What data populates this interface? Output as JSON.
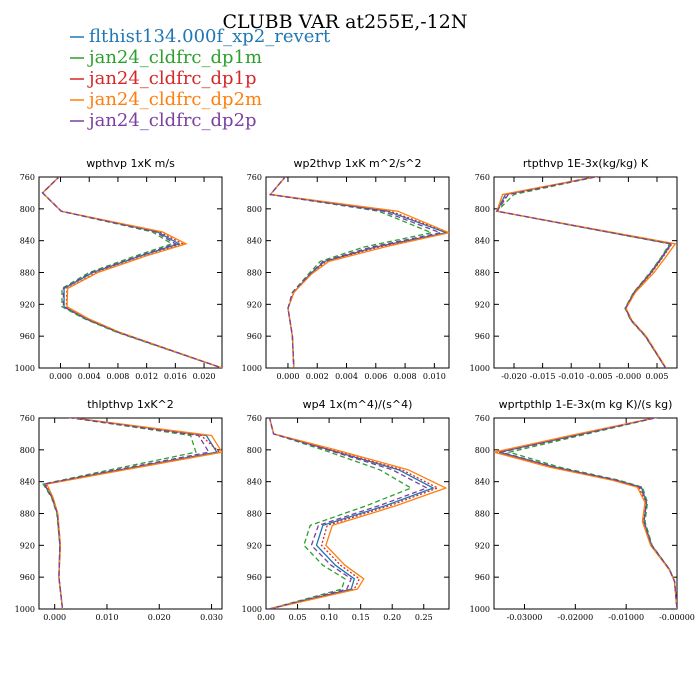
{
  "figure": {
    "title": "CLUBB VAR at255E,-12N"
  },
  "legend": [
    {
      "label": "flthist134.000f_xp2_revert",
      "color": "#1f77b4",
      "dash": "solid"
    },
    {
      "label": "jan24_cldfrc_dp1m",
      "color": "#2ca02c",
      "dash": "dashed"
    },
    {
      "label": "jan24_cldfrc_dp1p",
      "color": "#d62728",
      "dash": "dotted"
    },
    {
      "label": "jan24_cldfrc_dp2m",
      "color": "#ff7f0e",
      "dash": "solid"
    },
    {
      "label": "jan24_cldfrc_dp2p",
      "color": "#7b3fa0",
      "dash": "dashed"
    }
  ],
  "chart_data": [
    {
      "type": "line",
      "title": "wpthvp  1xK m/s",
      "xlim": [
        -0.003,
        0.0225
      ],
      "ylim": [
        760,
        1000
      ],
      "y_inverted": true,
      "xticks": [
        0.0,
        0.004,
        0.008,
        0.012,
        0.016,
        0.02
      ],
      "xtick_labels": [
        "0.000",
        "0.004",
        "0.008",
        "0.012",
        "0.016",
        "0.020"
      ],
      "yticks": [
        760,
        800,
        840,
        880,
        920,
        960,
        1000
      ],
      "y": [
        758,
        780,
        803,
        829,
        844,
        859,
        880,
        900,
        923,
        938,
        955,
        1000
      ],
      "series": [
        {
          "values": [
            0.0,
            -0.0025,
            0.0001,
            0.0135,
            0.0165,
            0.0112,
            0.0045,
            0.0005,
            0.0005,
            0.0035,
            0.008,
            0.0225
          ]
        },
        {
          "values": [
            0.0,
            -0.0025,
            0.0001,
            0.0128,
            0.0155,
            0.0105,
            0.004,
            0.0002,
            0.0002,
            0.0033,
            0.0078,
            0.0225
          ]
        },
        {
          "values": [
            0.0,
            -0.0025,
            0.0001,
            0.0138,
            0.017,
            0.0118,
            0.005,
            0.0009,
            0.0008,
            0.0038,
            0.0082,
            0.0225
          ]
        },
        {
          "values": [
            0.0,
            -0.0025,
            0.0001,
            0.0142,
            0.0175,
            0.012,
            0.0052,
            0.001,
            0.0009,
            0.0039,
            0.0082,
            0.0225
          ]
        },
        {
          "values": [
            0.0,
            -0.0025,
            0.0001,
            0.0132,
            0.016,
            0.011,
            0.0043,
            0.0004,
            0.0004,
            0.0035,
            0.008,
            0.0225
          ]
        }
      ]
    },
    {
      "type": "line",
      "title": "wp2thvp  1xK m^2/s^2",
      "xlim": [
        -0.0015,
        0.011
      ],
      "ylim": [
        760,
        1000
      ],
      "y_inverted": true,
      "xticks": [
        0.0,
        0.002,
        0.004,
        0.006,
        0.008,
        0.01
      ],
      "xtick_labels": [
        "0.000",
        "0.002",
        "0.004",
        "0.006",
        "0.008",
        "0.010"
      ],
      "yticks": [
        760,
        800,
        840,
        880,
        920,
        960,
        1000
      ],
      "y": [
        758,
        782,
        803,
        830,
        848,
        866,
        882,
        905,
        925,
        960,
        1000
      ],
      "series": [
        {
          "values": [
            -0.0001,
            -0.0012,
            0.0068,
            0.0108,
            0.006,
            0.0025,
            0.0015,
            0.0004,
            0.0,
            0.0003,
            0.0004
          ]
        },
        {
          "values": [
            -0.0001,
            -0.0012,
            0.0062,
            0.0098,
            0.0052,
            0.0022,
            0.0014,
            0.0003,
            0.0,
            0.0003,
            0.0004
          ]
        },
        {
          "values": [
            -0.0001,
            -0.0012,
            0.007,
            0.011,
            0.0062,
            0.0026,
            0.0016,
            0.0004,
            0.0,
            0.0003,
            0.0004
          ]
        },
        {
          "values": [
            -0.0001,
            -0.0012,
            0.0075,
            0.011,
            0.0066,
            0.0028,
            0.0016,
            0.0004,
            0.0,
            0.0003,
            0.0004
          ]
        },
        {
          "values": [
            -0.0001,
            -0.0012,
            0.0065,
            0.0104,
            0.0057,
            0.0024,
            0.0015,
            0.0003,
            0.0,
            0.0003,
            0.0004
          ]
        }
      ]
    },
    {
      "type": "line",
      "title": "rtpthvp  1E-3x(kg/kg) K",
      "xlim": [
        -0.0235,
        0.0085
      ],
      "ylim": [
        760,
        1000
      ],
      "y_inverted": true,
      "xticks": [
        -0.02,
        -0.015,
        -0.01,
        -0.005,
        0.0,
        0.005
      ],
      "xtick_labels": [
        "-0.020",
        "-0.015",
        "-0.010",
        "-0.005",
        "-0.000",
        "0.005"
      ],
      "yticks": [
        760,
        800,
        840,
        880,
        920,
        960,
        1000
      ],
      "y": [
        758,
        782,
        803,
        844,
        860,
        880,
        905,
        925,
        940,
        960,
        1000
      ],
      "series": [
        {
          "values": [
            -0.0045,
            -0.0215,
            -0.023,
            0.0075,
            0.006,
            0.004,
            0.001,
            -0.0005,
            0.0005,
            0.003,
            0.0065
          ]
        },
        {
          "values": [
            -0.0045,
            -0.02,
            -0.023,
            0.0072,
            0.0058,
            0.0038,
            0.0009,
            -0.0006,
            0.0004,
            0.0029,
            0.0065
          ]
        },
        {
          "values": [
            -0.0045,
            -0.0212,
            -0.023,
            0.0076,
            0.0061,
            0.0041,
            0.0011,
            -0.0005,
            0.0005,
            0.003,
            0.0065
          ]
        },
        {
          "values": [
            -0.0045,
            -0.022,
            -0.023,
            0.0082,
            0.0066,
            0.0045,
            0.0012,
            -0.0004,
            0.0006,
            0.0031,
            0.0066
          ]
        },
        {
          "values": [
            -0.0045,
            -0.021,
            -0.023,
            0.0074,
            0.0059,
            0.0039,
            0.001,
            -0.0005,
            0.0005,
            0.003,
            0.0065
          ]
        }
      ]
    },
    {
      "type": "line",
      "title": "thlpthvp  1xK^2",
      "xlim": [
        -0.003,
        0.032
      ],
      "ylim": [
        760,
        1000
      ],
      "y_inverted": true,
      "xticks": [
        0.0,
        0.01,
        0.02,
        0.03
      ],
      "xtick_labels": [
        "0.000",
        "0.010",
        "0.020",
        "0.030"
      ],
      "yticks": [
        760,
        800,
        840,
        880,
        920,
        960,
        1000
      ],
      "y": [
        758,
        782,
        803,
        828,
        843,
        860,
        880,
        920,
        960,
        1000
      ],
      "series": [
        {
          "values": [
            0.0012,
            0.029,
            0.031,
            0.01,
            -0.002,
            -0.0005,
            0.0005,
            0.001,
            0.0008,
            0.0015
          ]
        },
        {
          "values": [
            0.0012,
            0.026,
            0.027,
            0.0085,
            -0.0022,
            -0.0006,
            0.0004,
            0.001,
            0.0008,
            0.0015
          ]
        },
        {
          "values": [
            0.0012,
            0.028,
            0.0315,
            0.0105,
            -0.0018,
            -0.0004,
            0.0006,
            0.0011,
            0.0008,
            0.0015
          ]
        },
        {
          "values": [
            0.0012,
            0.03,
            0.032,
            0.011,
            -0.0015,
            -0.0003,
            0.0006,
            0.0011,
            0.0008,
            0.0015
          ]
        },
        {
          "values": [
            0.0012,
            0.0275,
            0.0295,
            0.0095,
            -0.002,
            -0.0005,
            0.0005,
            0.001,
            0.0008,
            0.0015
          ]
        }
      ]
    },
    {
      "type": "line",
      "title": "wp4  1x(m^4)/(s^4)",
      "xlim": [
        0.0,
        0.29
      ],
      "ylim": [
        760,
        1000
      ],
      "y_inverted": true,
      "xticks": [
        0.0,
        0.05,
        0.1,
        0.15,
        0.2,
        0.25
      ],
      "xtick_labels": [
        "0.00",
        "0.05",
        "0.10",
        "0.15",
        "0.20",
        "0.25"
      ],
      "yticks": [
        760,
        800,
        840,
        880,
        920,
        960,
        1000
      ],
      "y": [
        758,
        780,
        800,
        825,
        848,
        870,
        895,
        920,
        945,
        962,
        975,
        1000
      ],
      "series": [
        {
          "values": [
            0.005,
            0.012,
            0.1,
            0.21,
            0.265,
            0.19,
            0.09,
            0.08,
            0.11,
            0.14,
            0.135,
            0.005
          ]
        },
        {
          "values": [
            0.005,
            0.012,
            0.09,
            0.18,
            0.23,
            0.16,
            0.07,
            0.06,
            0.09,
            0.125,
            0.12,
            0.005
          ]
        },
        {
          "values": [
            0.005,
            0.012,
            0.103,
            0.215,
            0.272,
            0.197,
            0.097,
            0.088,
            0.118,
            0.148,
            0.14,
            0.005
          ]
        },
        {
          "values": [
            0.005,
            0.012,
            0.11,
            0.225,
            0.285,
            0.207,
            0.105,
            0.095,
            0.125,
            0.155,
            0.145,
            0.005
          ]
        },
        {
          "values": [
            0.005,
            0.012,
            0.097,
            0.2,
            0.255,
            0.18,
            0.083,
            0.072,
            0.103,
            0.135,
            0.128,
            0.005
          ]
        }
      ]
    },
    {
      "type": "line",
      "title": "wprtpthlp  1-E-3x(m kg K)/(s kg)",
      "xlim": [
        -0.036,
        0.0
      ],
      "ylim": [
        760,
        1000
      ],
      "y_inverted": true,
      "xticks": [
        -0.03,
        -0.02,
        -0.01,
        0.0
      ],
      "xtick_labels": [
        "-0.03000",
        "-0.02000",
        "-0.01000",
        "-0.00000"
      ],
      "yticks": [
        760,
        800,
        840,
        880,
        920,
        960,
        1000
      ],
      "y": [
        758,
        782,
        803,
        822,
        838,
        847,
        866,
        890,
        920,
        950,
        965,
        1000
      ],
      "series": [
        {
          "values": [
            -0.003,
            -0.02,
            -0.035,
            -0.024,
            -0.012,
            -0.007,
            -0.006,
            -0.0065,
            -0.005,
            -0.0015,
            -0.0005,
            0.0
          ]
        },
        {
          "values": [
            -0.003,
            -0.019,
            -0.033,
            -0.023,
            -0.0115,
            -0.0068,
            -0.0058,
            -0.0063,
            -0.0049,
            -0.0015,
            -0.0005,
            0.0
          ]
        },
        {
          "values": [
            -0.003,
            -0.0205,
            -0.0355,
            -0.0245,
            -0.0125,
            -0.0075,
            -0.0062,
            -0.0067,
            -0.0051,
            -0.0016,
            -0.0005,
            0.0
          ]
        },
        {
          "values": [
            -0.003,
            -0.021,
            -0.036,
            -0.025,
            -0.0128,
            -0.0078,
            -0.0063,
            -0.0068,
            -0.0052,
            -0.0016,
            -0.0005,
            0.0
          ]
        },
        {
          "values": [
            -0.003,
            -0.0198,
            -0.0345,
            -0.0238,
            -0.012,
            -0.0072,
            -0.006,
            -0.0065,
            -0.005,
            -0.0015,
            -0.0005,
            0.0
          ]
        }
      ]
    }
  ]
}
